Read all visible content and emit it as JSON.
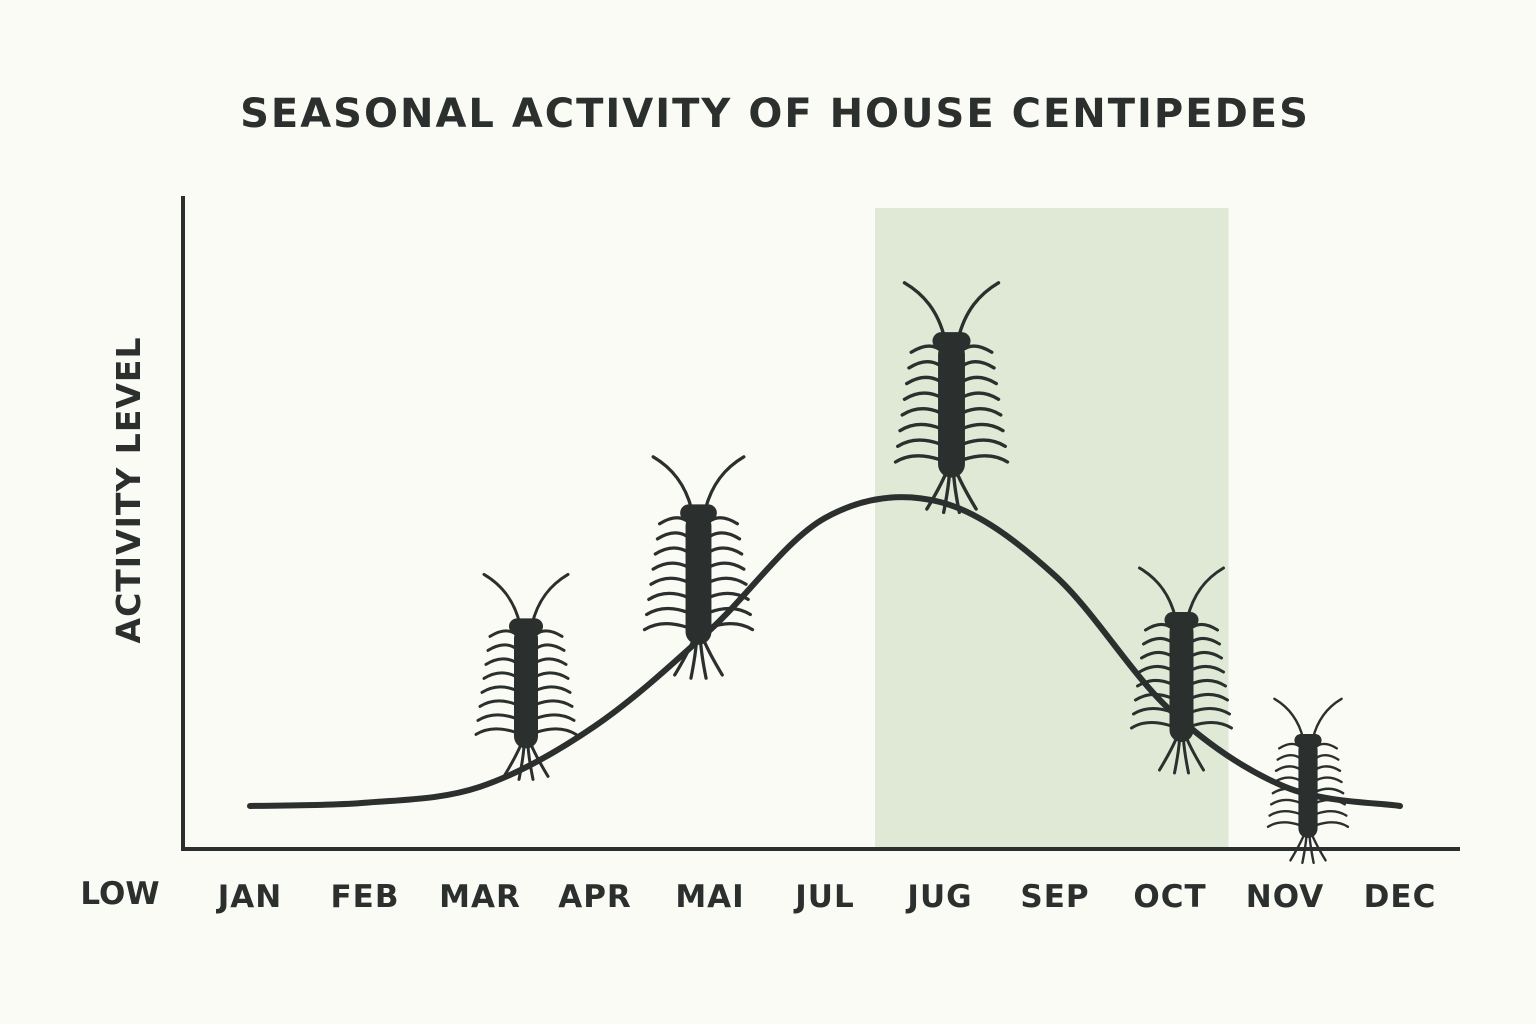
{
  "chart_data": {
    "type": "line",
    "title": "SEASONAL ACTIVITY OF HOUSE CENTIPEDES",
    "xlabel": "",
    "ylabel": "ACTIVITY LEVEL",
    "y_low_label": "LOW",
    "categories": [
      "JAN",
      "FEB",
      "MAR",
      "APR",
      "MAI",
      "JUL",
      "JUG",
      "SEP",
      "OCT",
      "NOV",
      "DEC"
    ],
    "values": [
      0.0,
      0.01,
      0.06,
      0.25,
      0.55,
      0.9,
      0.95,
      0.72,
      0.3,
      0.06,
      0.0
    ],
    "ylim": [
      0,
      1.6
    ],
    "highlight_range": [
      5.4,
      8.5
    ],
    "highlight_color": "#dfe9d6",
    "line_color": "#2b2f2d",
    "grid": false,
    "centipede_markers": [
      {
        "x": 2.4,
        "level": 0.38,
        "size": 1.0
      },
      {
        "x": 3.9,
        "level": 0.72,
        "size": 1.08
      },
      {
        "x": 6.1,
        "level": 1.25,
        "size": 1.12
      },
      {
        "x": 8.1,
        "level": 0.4,
        "size": 1.0
      },
      {
        "x": 9.2,
        "level": 0.06,
        "size": 0.8
      }
    ]
  }
}
